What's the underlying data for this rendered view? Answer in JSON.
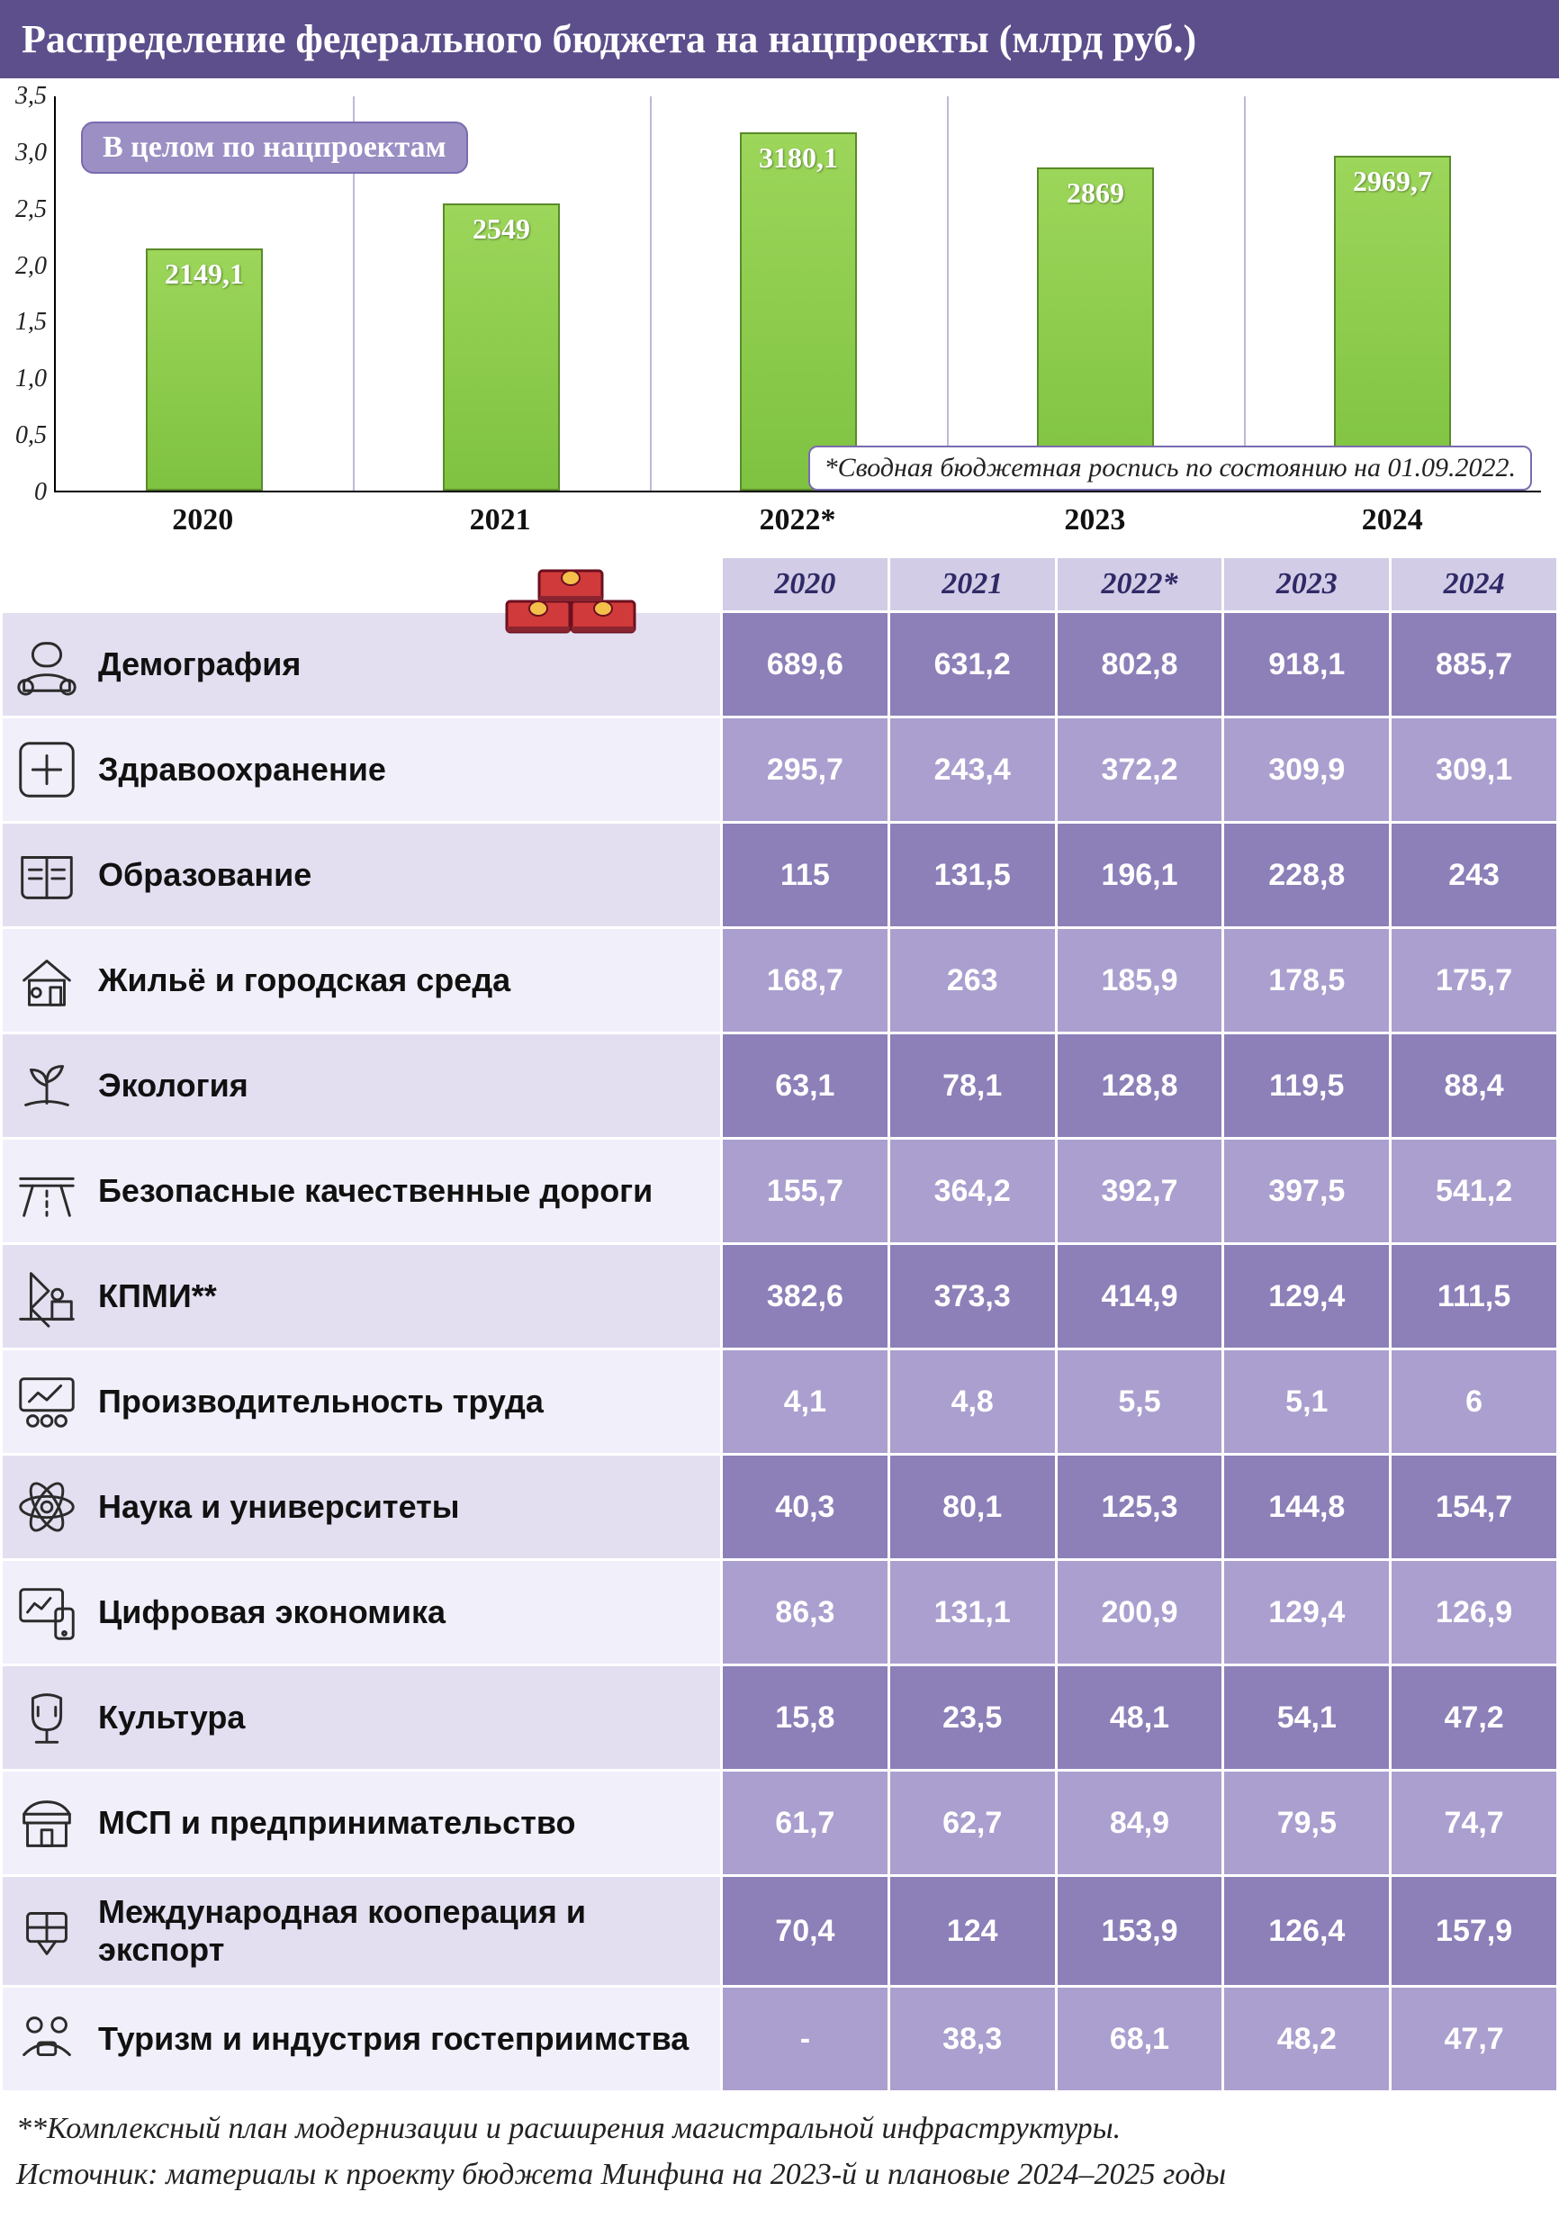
{
  "title": "Распределение федерального бюджета на нацпроекты (млрд руб.)",
  "chart": {
    "type": "bar",
    "legend_label": "В целом по нацпроектам",
    "footnote": "*Сводная бюджетная роспись по состоянию на 01.09.2022.",
    "categories": [
      "2020",
      "2021",
      "2022*",
      "2023",
      "2024"
    ],
    "values": [
      2149.1,
      2549,
      3180.1,
      2869,
      2969.7
    ],
    "value_labels": [
      "2149,1",
      "2549",
      "3180,1",
      "2869",
      "2969,7"
    ],
    "ylim": [
      0,
      3.5
    ],
    "ytick_step": 0.5,
    "ytick_labels": [
      "0",
      "0,5",
      "1,0",
      "1,5",
      "2,0",
      "2,5",
      "3,0",
      "3,5"
    ],
    "bar_fill_top": "#9cd65a",
    "bar_fill_bottom": "#7fc241",
    "bar_border": "#5a8a2a",
    "grid_color": "#bfb7d8",
    "axis_color": "#000000",
    "legend_bg": "#9b8fc4",
    "legend_border": "#7a6bb0"
  },
  "table": {
    "year_headers": [
      "2020",
      "2021",
      "2022*",
      "2023",
      "2024"
    ],
    "header_bg": "#d2cce6",
    "header_color": "#2f2a66",
    "row_name_bg_odd": "#e3dff0",
    "row_name_bg_even": "#f1effa",
    "val_bg_odd": "#8d7fb8",
    "val_bg_even": "#ab9fcf",
    "val_color": "#ffffff",
    "rows": [
      {
        "icon": "demography",
        "name": "Демография",
        "vals": [
          "689,6",
          "631,2",
          "802,8",
          "918,1",
          "885,7"
        ]
      },
      {
        "icon": "health",
        "name": "Здравоохранение",
        "vals": [
          "295,7",
          "243,4",
          "372,2",
          "309,9",
          "309,1"
        ]
      },
      {
        "icon": "education",
        "name": "Образование",
        "vals": [
          "115",
          "131,5",
          "196,1",
          "228,8",
          "243"
        ]
      },
      {
        "icon": "housing",
        "name": "Жильё и городская среда",
        "vals": [
          "168,7",
          "263",
          "185,9",
          "178,5",
          "175,7"
        ]
      },
      {
        "icon": "ecology",
        "name": "Экология",
        "vals": [
          "63,1",
          "78,1",
          "128,8",
          "119,5",
          "88,4"
        ]
      },
      {
        "icon": "roads",
        "name": "Безопасные качественные дороги",
        "vals": [
          "155,7",
          "364,2",
          "392,7",
          "397,5",
          "541,2"
        ]
      },
      {
        "icon": "infra",
        "name": "КПМИ**",
        "vals": [
          "382,6",
          "373,3",
          "414,9",
          "129,4",
          "111,5"
        ]
      },
      {
        "icon": "productivity",
        "name": "Производительность труда",
        "vals": [
          "4,1",
          "4,8",
          "5,5",
          "5,1",
          "6"
        ]
      },
      {
        "icon": "science",
        "name": "Наука и университеты",
        "vals": [
          "40,3",
          "80,1",
          "125,3",
          "144,8",
          "154,7"
        ]
      },
      {
        "icon": "digital",
        "name": "Цифровая экономика",
        "vals": [
          "86,3",
          "131,1",
          "200,9",
          "129,4",
          "126,9"
        ]
      },
      {
        "icon": "culture",
        "name": "Культура",
        "vals": [
          "15,8",
          "23,5",
          "48,1",
          "54,1",
          "47,2"
        ]
      },
      {
        "icon": "sme",
        "name": "МСП и предпринимательство",
        "vals": [
          "61,7",
          "62,7",
          "84,9",
          "79,5",
          "74,7"
        ]
      },
      {
        "icon": "export",
        "name": "Международная кооперация и экспорт",
        "vals": [
          "70,4",
          "124",
          "153,9",
          "126,4",
          "157,9"
        ]
      },
      {
        "icon": "tourism",
        "name": "Туризм и индустрия гостеприимства",
        "vals": [
          "-",
          "38,3",
          "68,1",
          "48,2",
          "47,7"
        ]
      }
    ]
  },
  "footnotes": {
    "line1": "**Комплексный план модернизации и расширения магистральной инфраструктуры.",
    "line2": "Источник: материалы к проекту бюджета Минфина на 2023-й и плановые 2024–2025 годы"
  },
  "colors": {
    "header_bg": "#5d4e8c",
    "header_text": "#ffffff",
    "icon_stroke": "#2b2b2b"
  }
}
